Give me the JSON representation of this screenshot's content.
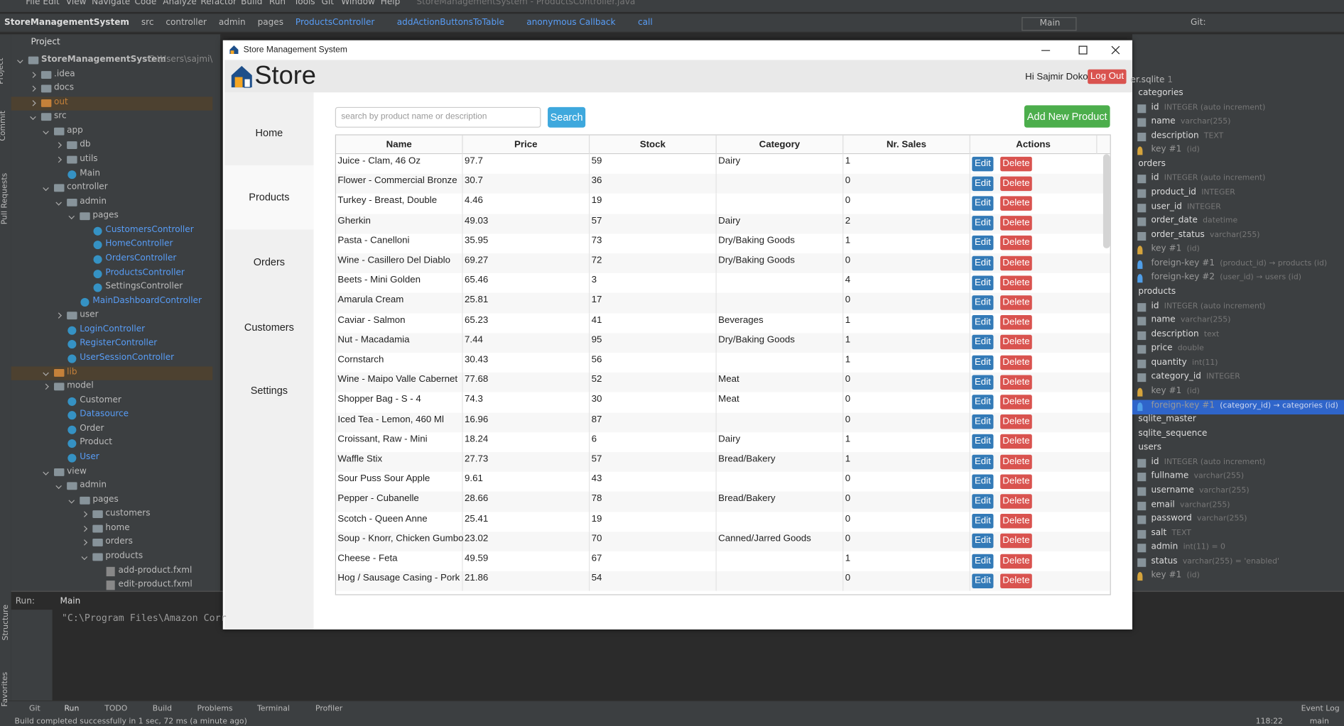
{
  "ide": {
    "window_title": "StoreManagementSystem - ProductsController.java",
    "menu": [
      "File",
      "Edit",
      "View",
      "Navigate",
      "Code",
      "Analyze",
      "Refactor",
      "Build",
      "Run",
      "Tools",
      "Git",
      "Window",
      "Help"
    ],
    "breadcrumb": [
      "StoreManagementSystem",
      "src",
      "controller",
      "admin",
      "pages",
      "ProductsController",
      "addActionButtonsToTable",
      "anonymous Callback",
      "call"
    ],
    "run_config": "Main",
    "git_label": "Git:",
    "side_tabs": [
      "Project",
      "Commit",
      "Pull Requests",
      "Structure",
      "Favorites"
    ],
    "project_panel_title": "Project",
    "project_root_path": "C:\\Users\\sajmi\\C",
    "tree": [
      "StoreManagementSystem",
      ".idea",
      "docs",
      "out",
      "src",
      "app",
      "db",
      "utils",
      "Main",
      "controller",
      "admin",
      "pages",
      "CustomersController",
      "HomeController",
      "OrdersController",
      "ProductsController",
      "SettingsController",
      "MainDashboardController",
      "user",
      "LoginController",
      "RegisterController",
      "UserSessionController",
      "lib",
      "model",
      "Customer",
      "Datasource",
      "Order",
      "Product",
      "User",
      "view",
      "admin",
      "pages",
      "customers",
      "home",
      "orders",
      "products",
      "add-product.fxml",
      "edit-product.fxml"
    ],
    "db_file": "er.sqlite",
    "db_file_count": "1",
    "db_items": [
      {
        "name": "categories"
      },
      {
        "name": "id",
        "detail": "INTEGER (auto increment)"
      },
      {
        "name": "name",
        "detail": "varchar(255)"
      },
      {
        "name": "description",
        "detail": "TEXT"
      },
      {
        "name": "key #1",
        "detail": "(id)"
      },
      {
        "name": "orders"
      },
      {
        "name": "id",
        "detail": "INTEGER (auto increment)"
      },
      {
        "name": "product_id",
        "detail": "INTEGER"
      },
      {
        "name": "user_id",
        "detail": "INTEGER"
      },
      {
        "name": "order_date",
        "detail": "datetime"
      },
      {
        "name": "order_status",
        "detail": "varchar(255)"
      },
      {
        "name": "key #1",
        "detail": "(id)"
      },
      {
        "name": "foreign-key #1",
        "detail": "(product_id) → products (id)"
      },
      {
        "name": "foreign-key #2",
        "detail": "(user_id) → users (id)"
      },
      {
        "name": "products"
      },
      {
        "name": "id",
        "detail": "INTEGER (auto increment)"
      },
      {
        "name": "name",
        "detail": "varchar(255)"
      },
      {
        "name": "description",
        "detail": "text"
      },
      {
        "name": "price",
        "detail": "double"
      },
      {
        "name": "quantity",
        "detail": "int(11)"
      },
      {
        "name": "category_id",
        "detail": "INTEGER"
      },
      {
        "name": "key #1",
        "detail": "(id)"
      },
      {
        "name": "foreign-key #1",
        "detail": "(category_id) → categories (id)"
      },
      {
        "name": "sqlite_master"
      },
      {
        "name": "sqlite_sequence"
      },
      {
        "name": "users"
      },
      {
        "name": "id",
        "detail": "INTEGER (auto increment)"
      },
      {
        "name": "fullname",
        "detail": "varchar(255)"
      },
      {
        "name": "username",
        "detail": "varchar(255)"
      },
      {
        "name": "email",
        "detail": "varchar(255)"
      },
      {
        "name": "password",
        "detail": "varchar(255)"
      },
      {
        "name": "salt",
        "detail": "TEXT"
      },
      {
        "name": "admin",
        "detail": "int(11) = 0"
      },
      {
        "name": "status",
        "detail": "varchar(255) = 'enabled'"
      },
      {
        "name": "key #1",
        "detail": "(id)"
      }
    ],
    "run_label": "Run:",
    "run_tab": "Main",
    "console_line": "\"C:\\Program Files\\Amazon Corr",
    "bottom_tools": [
      "Git",
      "Run",
      "TODO",
      "Build",
      "Problems",
      "Terminal",
      "Profiler"
    ],
    "event_log": "Event Log",
    "status_message": "Build completed successfully in 1 sec, 72 ms (a minute ago)",
    "cursor_position": "118:22",
    "branch": "main"
  },
  "app": {
    "window_title": "Store Management System",
    "logo": "Store",
    "greeting": "Hi Sajmir Doko",
    "logout": "Log Out",
    "nav": [
      "Home",
      "Products",
      "Orders",
      "Customers",
      "Settings"
    ],
    "search_placeholder": "search by product name or description",
    "search_button": "Search",
    "add_button": "Add New Product",
    "edit_label": "Edit",
    "delete_label": "Delete",
    "table": {
      "columns": [
        "Name",
        "Price",
        "Stock",
        "Category",
        "Nr. Sales",
        "Actions"
      ],
      "rows": [
        [
          "Juice - Clam, 46 Oz",
          97.7,
          59,
          "Dairy",
          1
        ],
        [
          "Flower - Commercial Bronze",
          30.7,
          36,
          null,
          0
        ],
        [
          "Turkey - Breast, Double",
          4.46,
          19,
          null,
          0
        ],
        [
          "Gherkin",
          49.03,
          57,
          "Dairy",
          2
        ],
        [
          "Pasta - Canelloni",
          35.95,
          73,
          "Dry/Baking Goods",
          1
        ],
        [
          "Wine - Casillero Del Diablo",
          69.27,
          72,
          "Dry/Baking Goods",
          0
        ],
        [
          "Beets - Mini Golden",
          65.46,
          3,
          null,
          4
        ],
        [
          "Amarula Cream",
          25.81,
          17,
          null,
          0
        ],
        [
          "Caviar - Salmon",
          65.23,
          41,
          "Beverages",
          1
        ],
        [
          "Nut - Macadamia",
          7.44,
          95,
          "Dry/Baking Goods",
          1
        ],
        [
          "Cornstarch",
          30.43,
          56,
          null,
          1
        ],
        [
          "Wine - Maipo Valle Cabernet",
          77.68,
          52,
          "Meat",
          0
        ],
        [
          "Shopper Bag - S - 4",
          74.3,
          30,
          "Meat",
          0
        ],
        [
          "Iced Tea - Lemon, 460 Ml",
          16.96,
          87,
          null,
          0
        ],
        [
          "Croissant, Raw - Mini",
          18.24,
          6,
          "Dairy",
          1
        ],
        [
          "Waffle Stix",
          27.73,
          57,
          "Bread/Bakery",
          1
        ],
        [
          "Sour Puss Sour Apple",
          9.61,
          43,
          null,
          0
        ],
        [
          "Pepper - Cubanelle",
          28.66,
          78,
          "Bread/Bakery",
          0
        ],
        [
          "Scotch - Queen Anne",
          25.41,
          19,
          null,
          0
        ],
        [
          "Soup - Knorr, Chicken Gumbo",
          23.02,
          70,
          "Canned/Jarred Goods",
          0
        ],
        [
          "Cheese - Feta",
          49.59,
          67,
          null,
          1
        ],
        [
          "Hog / Sausage Casing - Pork",
          21.86,
          54,
          null,
          0
        ]
      ]
    }
  }
}
